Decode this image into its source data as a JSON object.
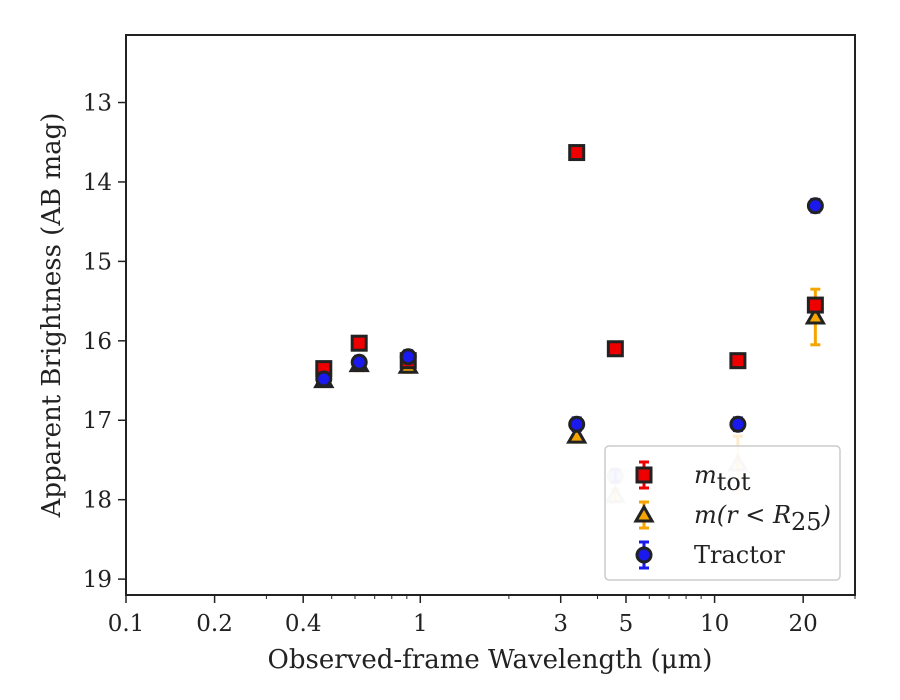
{
  "chart_data": {
    "type": "scatter",
    "xlabel": "Observed-frame Wavelength (μm)",
    "ylabel": "Apparent Brightness (AB mag)",
    "xscale": "log",
    "xlim": [
      0.1,
      30
    ],
    "ylim": [
      19.2,
      12.15
    ],
    "y_inverted": true,
    "x_ticks": [
      0.1,
      0.2,
      0.4,
      1,
      3,
      5,
      10,
      20
    ],
    "x_tick_labels": [
      "0.1",
      "0.2",
      "0.4",
      "1",
      "3",
      "5",
      "10",
      "20"
    ],
    "y_ticks": [
      13,
      14,
      15,
      16,
      17,
      18,
      19
    ],
    "y_tick_labels": [
      "13",
      "14",
      "15",
      "16",
      "17",
      "18",
      "19"
    ],
    "legend_position": "lower-right",
    "grid": false,
    "series": [
      {
        "label_main": "m",
        "label_sub": "tot",
        "marker": "square",
        "color": "#ee0000",
        "edge_color": "#222222",
        "errorbar_color": "#ee0000",
        "points": [
          {
            "x": 0.47,
            "y": 16.35,
            "err": 0.05,
            "faded": false
          },
          {
            "x": 0.62,
            "y": 16.03,
            "err": 0.05,
            "faded": false
          },
          {
            "x": 0.91,
            "y": 16.25,
            "err": 0.05,
            "faded": false
          },
          {
            "x": 3.4,
            "y": 13.63,
            "err": 0.05,
            "faded": false
          },
          {
            "x": 4.6,
            "y": 16.1,
            "err": 0.05,
            "faded": false
          },
          {
            "x": 12.0,
            "y": 16.25,
            "err": 0.05,
            "faded": false
          },
          {
            "x": 22.0,
            "y": 15.55,
            "err": 0.08,
            "faded": false
          }
        ]
      },
      {
        "label_main": "m(r < R",
        "label_sub": "25",
        "label_end": ")",
        "marker": "triangle",
        "color": "#f5a500",
        "edge_color": "#222222",
        "errorbar_color": "#f5a500",
        "points": [
          {
            "x": 0.47,
            "y": 16.5,
            "err": 0.05,
            "faded": false
          },
          {
            "x": 0.62,
            "y": 16.3,
            "err": 0.05,
            "faded": false
          },
          {
            "x": 0.91,
            "y": 16.32,
            "err": 0.05,
            "faded": false
          },
          {
            "x": 3.4,
            "y": 17.2,
            "err": 0.05,
            "faded": false
          },
          {
            "x": 4.6,
            "y": 17.95,
            "err": 0.05,
            "faded": true
          },
          {
            "x": 12.0,
            "y": 17.55,
            "err": 0.35,
            "faded": true
          },
          {
            "x": 22.0,
            "y": 15.7,
            "err": 0.35,
            "faded": false
          }
        ]
      },
      {
        "label_main": "Tractor",
        "marker": "circle",
        "color": "#1a1aee",
        "edge_color": "#222222",
        "errorbar_color": "#1a1aee",
        "points": [
          {
            "x": 0.47,
            "y": 16.48,
            "err": 0.05,
            "faded": false
          },
          {
            "x": 0.62,
            "y": 16.27,
            "err": 0.05,
            "faded": false
          },
          {
            "x": 0.91,
            "y": 16.2,
            "err": 0.05,
            "faded": false
          },
          {
            "x": 3.4,
            "y": 17.05,
            "err": 0.08,
            "faded": false
          },
          {
            "x": 4.6,
            "y": 17.7,
            "err": 0.08,
            "faded": true
          },
          {
            "x": 12.0,
            "y": 17.05,
            "err": 0.08,
            "faded": false
          },
          {
            "x": 22.0,
            "y": 14.3,
            "err": 0.08,
            "faded": false
          }
        ]
      }
    ]
  }
}
